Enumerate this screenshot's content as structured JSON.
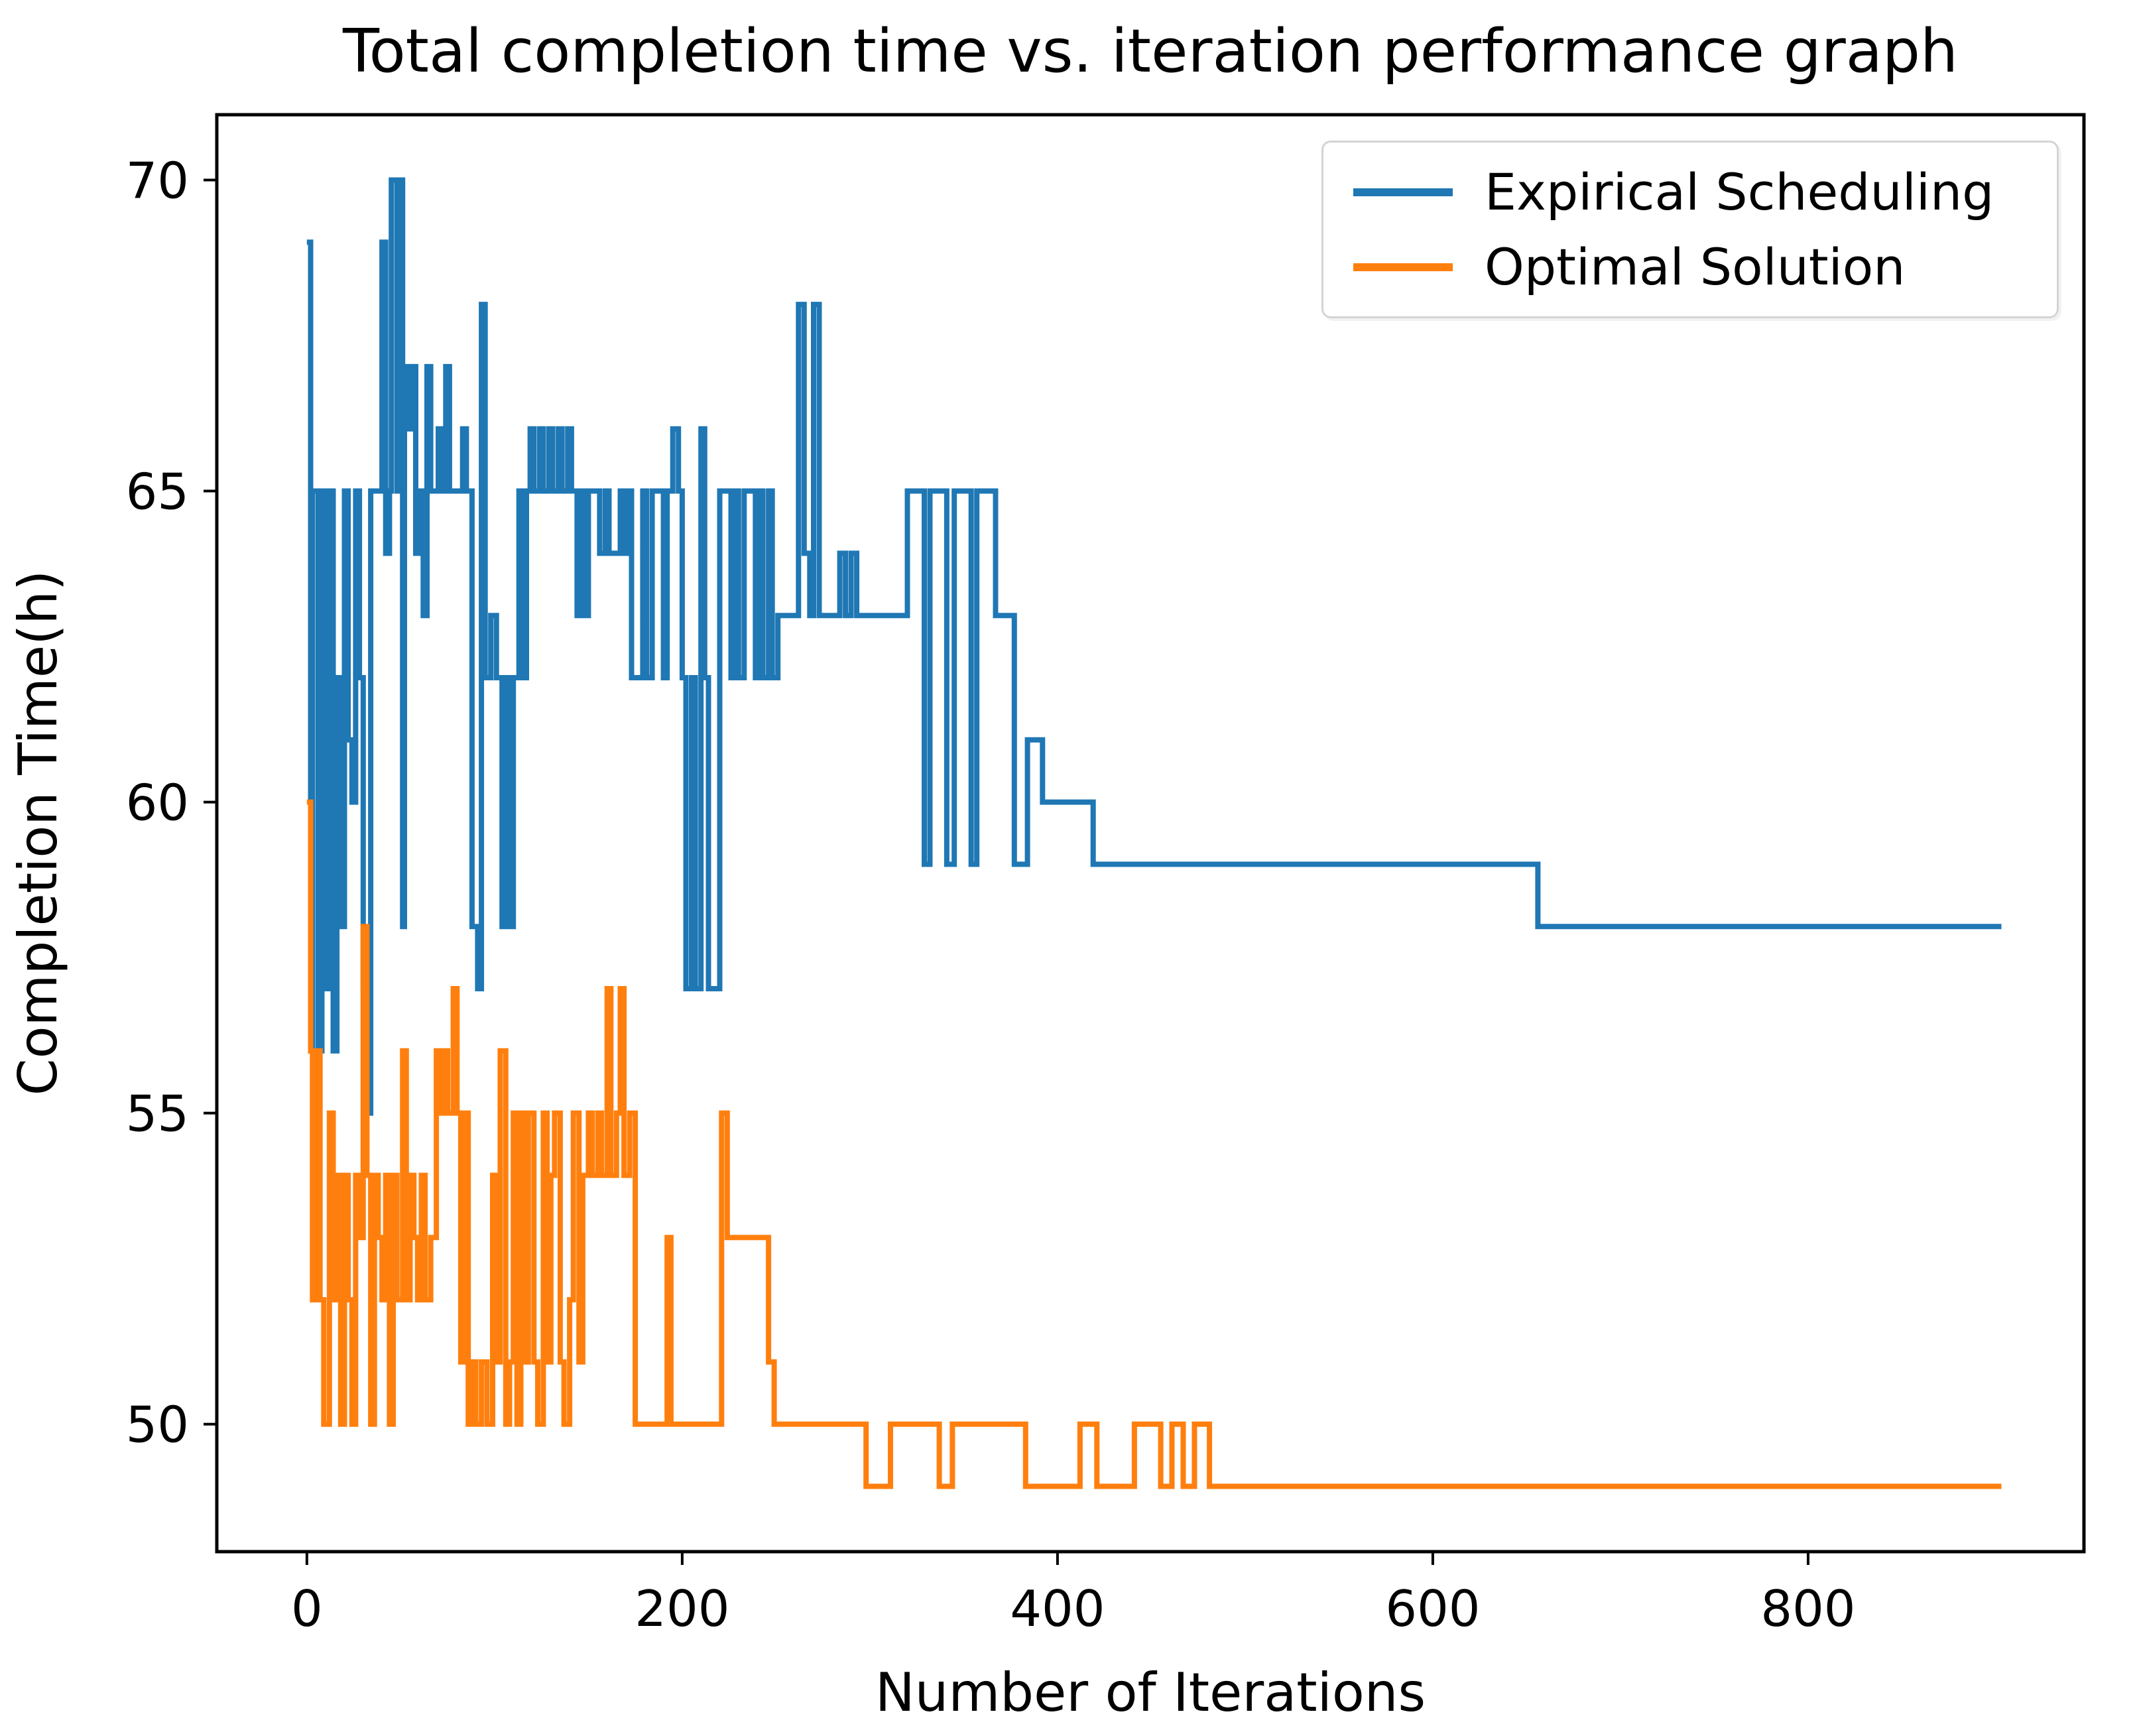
{
  "chart_data": {
    "type": "line",
    "step_style": true,
    "title": "Total completion time vs. iteration performance graph",
    "xlabel": "Number of Iterations",
    "ylabel": "Completion Time(h)",
    "xlim": [
      -48,
      947
    ],
    "ylim": [
      47.95,
      71.05
    ],
    "xticks": [
      0,
      200,
      400,
      600,
      800
    ],
    "yticks": [
      50,
      55,
      60,
      65,
      70
    ],
    "grid": false,
    "legend_position": "upper right",
    "series": [
      {
        "name": "Expirical Scheduling",
        "color": "#1f77b4",
        "points": [
          [
            0,
            69
          ],
          [
            2,
            56
          ],
          [
            3,
            65
          ],
          [
            6,
            56
          ],
          [
            8,
            65
          ],
          [
            10,
            57
          ],
          [
            12,
            65
          ],
          [
            14,
            56
          ],
          [
            16,
            62
          ],
          [
            18,
            58
          ],
          [
            20,
            65
          ],
          [
            22,
            61
          ],
          [
            24,
            60
          ],
          [
            26,
            65
          ],
          [
            28,
            62
          ],
          [
            30,
            57
          ],
          [
            32,
            55
          ],
          [
            34,
            65
          ],
          [
            38,
            65
          ],
          [
            40,
            69
          ],
          [
            42,
            64
          ],
          [
            44,
            65
          ],
          [
            45,
            70
          ],
          [
            48,
            65
          ],
          [
            49,
            70
          ],
          [
            51,
            58
          ],
          [
            52,
            67
          ],
          [
            54,
            66
          ],
          [
            56,
            67
          ],
          [
            58,
            64
          ],
          [
            60,
            65
          ],
          [
            62,
            63
          ],
          [
            64,
            67
          ],
          [
            66,
            65
          ],
          [
            70,
            66
          ],
          [
            72,
            65
          ],
          [
            74,
            67
          ],
          [
            76,
            65
          ],
          [
            80,
            65
          ],
          [
            83,
            66
          ],
          [
            85,
            65
          ],
          [
            88,
            58
          ],
          [
            91,
            57
          ],
          [
            93,
            68
          ],
          [
            95,
            62
          ],
          [
            98,
            63
          ],
          [
            101,
            62
          ],
          [
            104,
            58
          ],
          [
            106,
            62
          ],
          [
            108,
            58
          ],
          [
            110,
            62
          ],
          [
            113,
            65
          ],
          [
            115,
            62
          ],
          [
            117,
            65
          ],
          [
            119,
            66
          ],
          [
            121,
            65
          ],
          [
            124,
            66
          ],
          [
            126,
            65
          ],
          [
            129,
            66
          ],
          [
            131,
            65
          ],
          [
            134,
            66
          ],
          [
            136,
            65
          ],
          [
            139,
            66
          ],
          [
            141,
            65
          ],
          [
            144,
            63
          ],
          [
            146,
            65
          ],
          [
            148,
            63
          ],
          [
            150,
            65
          ],
          [
            153,
            65
          ],
          [
            156,
            64
          ],
          [
            159,
            65
          ],
          [
            161,
            64
          ],
          [
            164,
            64
          ],
          [
            167,
            65
          ],
          [
            169,
            64
          ],
          [
            171,
            65
          ],
          [
            173,
            62
          ],
          [
            176,
            62
          ],
          [
            179,
            65
          ],
          [
            181,
            62
          ],
          [
            184,
            65
          ],
          [
            187,
            65
          ],
          [
            190,
            62
          ],
          [
            192,
            65
          ],
          [
            195,
            66
          ],
          [
            198,
            65
          ],
          [
            200,
            62
          ],
          [
            202,
            57
          ],
          [
            205,
            62
          ],
          [
            207,
            57
          ],
          [
            210,
            66
          ],
          [
            212,
            62
          ],
          [
            214,
            57
          ],
          [
            218,
            57
          ],
          [
            220,
            65
          ],
          [
            223,
            65
          ],
          [
            226,
            62
          ],
          [
            228,
            65
          ],
          [
            230,
            62
          ],
          [
            233,
            65
          ],
          [
            236,
            65
          ],
          [
            239,
            62
          ],
          [
            241,
            65
          ],
          [
            243,
            62
          ],
          [
            246,
            65
          ],
          [
            248,
            62
          ],
          [
            251,
            63
          ],
          [
            254,
            63
          ],
          [
            258,
            63
          ],
          [
            262,
            68
          ],
          [
            265,
            64
          ],
          [
            268,
            63
          ],
          [
            270,
            68
          ],
          [
            273,
            63
          ],
          [
            277,
            63
          ],
          [
            281,
            63
          ],
          [
            284,
            64
          ],
          [
            287,
            63
          ],
          [
            290,
            64
          ],
          [
            293,
            63
          ],
          [
            298,
            63
          ],
          [
            305,
            63
          ],
          [
            312,
            63
          ],
          [
            317,
            63
          ],
          [
            320,
            65
          ],
          [
            325,
            65
          ],
          [
            329,
            59
          ],
          [
            332,
            65
          ],
          [
            337,
            65
          ],
          [
            341,
            59
          ],
          [
            345,
            65
          ],
          [
            350,
            65
          ],
          [
            354,
            59
          ],
          [
            357,
            65
          ],
          [
            362,
            65
          ],
          [
            367,
            63
          ],
          [
            372,
            63
          ],
          [
            377,
            59
          ],
          [
            384,
            61
          ],
          [
            392,
            60
          ],
          [
            419,
            59
          ],
          [
            470,
            59
          ],
          [
            530,
            59
          ],
          [
            590,
            59
          ],
          [
            650,
            59
          ],
          [
            656,
            58
          ],
          [
            710,
            58
          ],
          [
            770,
            58
          ],
          [
            830,
            58
          ],
          [
            880,
            58
          ],
          [
            903,
            58
          ]
        ]
      },
      {
        "name": "Optimal Solution",
        "color": "#ff7f0e",
        "points": [
          [
            0,
            60
          ],
          [
            2,
            56
          ],
          [
            3,
            52
          ],
          [
            5,
            56
          ],
          [
            7,
            52
          ],
          [
            9,
            50
          ],
          [
            12,
            55
          ],
          [
            14,
            52
          ],
          [
            16,
            54
          ],
          [
            18,
            50
          ],
          [
            20,
            54
          ],
          [
            22,
            52
          ],
          [
            24,
            50
          ],
          [
            26,
            54
          ],
          [
            28,
            53
          ],
          [
            30,
            58
          ],
          [
            32,
            54
          ],
          [
            34,
            50
          ],
          [
            36,
            54
          ],
          [
            38,
            53
          ],
          [
            40,
            52
          ],
          [
            42,
            54
          ],
          [
            44,
            50
          ],
          [
            46,
            54
          ],
          [
            48,
            52
          ],
          [
            51,
            56
          ],
          [
            53,
            52
          ],
          [
            55,
            54
          ],
          [
            57,
            53
          ],
          [
            59,
            52
          ],
          [
            61,
            54
          ],
          [
            63,
            52
          ],
          [
            66,
            53
          ],
          [
            69,
            56
          ],
          [
            71,
            55
          ],
          [
            73,
            56
          ],
          [
            75,
            55
          ],
          [
            78,
            57
          ],
          [
            80,
            55
          ],
          [
            82,
            51
          ],
          [
            84,
            55
          ],
          [
            86,
            50
          ],
          [
            88,
            51
          ],
          [
            90,
            50
          ],
          [
            93,
            51
          ],
          [
            96,
            50
          ],
          [
            99,
            54
          ],
          [
            101,
            51
          ],
          [
            103,
            56
          ],
          [
            106,
            50
          ],
          [
            108,
            51
          ],
          [
            110,
            55
          ],
          [
            112,
            50
          ],
          [
            114,
            55
          ],
          [
            116,
            51
          ],
          [
            118,
            55
          ],
          [
            121,
            51
          ],
          [
            123,
            50
          ],
          [
            126,
            55
          ],
          [
            128,
            51
          ],
          [
            130,
            54
          ],
          [
            132,
            55
          ],
          [
            135,
            51
          ],
          [
            137,
            50
          ],
          [
            140,
            52
          ],
          [
            142,
            55
          ],
          [
            145,
            51
          ],
          [
            147,
            54
          ],
          [
            150,
            55
          ],
          [
            152,
            54
          ],
          [
            155,
            55
          ],
          [
            157,
            54
          ],
          [
            160,
            57
          ],
          [
            162,
            54
          ],
          [
            165,
            55
          ],
          [
            167,
            57
          ],
          [
            169,
            54
          ],
          [
            172,
            55
          ],
          [
            175,
            50
          ],
          [
            180,
            50
          ],
          [
            186,
            50
          ],
          [
            192,
            53
          ],
          [
            194,
            50
          ],
          [
            200,
            50
          ],
          [
            207,
            50
          ],
          [
            214,
            50
          ],
          [
            221,
            55
          ],
          [
            224,
            53
          ],
          [
            229,
            53
          ],
          [
            235,
            53
          ],
          [
            241,
            53
          ],
          [
            246,
            51
          ],
          [
            249,
            50
          ],
          [
            256,
            50
          ],
          [
            264,
            50
          ],
          [
            272,
            50
          ],
          [
            280,
            50
          ],
          [
            288,
            50
          ],
          [
            295,
            50
          ],
          [
            298,
            49
          ],
          [
            311,
            50
          ],
          [
            320,
            50
          ],
          [
            330,
            50
          ],
          [
            337,
            49
          ],
          [
            344,
            50
          ],
          [
            355,
            50
          ],
          [
            368,
            50
          ],
          [
            383,
            49
          ],
          [
            412,
            50
          ],
          [
            421,
            49
          ],
          [
            441,
            50
          ],
          [
            455,
            49
          ],
          [
            461,
            50
          ],
          [
            467,
            49
          ],
          [
            473,
            50
          ],
          [
            481,
            49
          ],
          [
            530,
            49
          ],
          [
            580,
            49
          ],
          [
            630,
            49
          ],
          [
            680,
            49
          ],
          [
            730,
            49
          ],
          [
            780,
            49
          ],
          [
            830,
            49
          ],
          [
            880,
            49
          ],
          [
            903,
            49
          ]
        ]
      }
    ]
  },
  "legend": {
    "entries": [
      "Expirical Scheduling",
      "Optimal Solution"
    ]
  }
}
